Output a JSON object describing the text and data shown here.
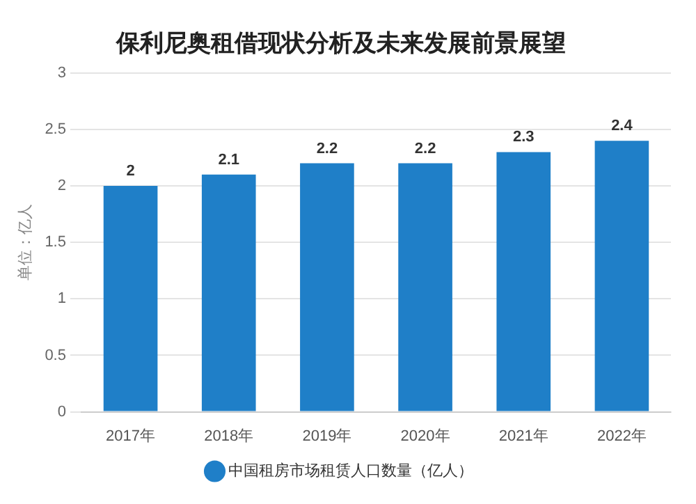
{
  "chart_data": {
    "type": "bar",
    "title": "保利尼奥租借现状分析及未来发展前景展望",
    "ylabel": "单位：亿人",
    "categories": [
      "2017年",
      "2018年",
      "2019年",
      "2020年",
      "2021年",
      "2022年"
    ],
    "series": [
      {
        "name": "中国租房市场租赁人口数量（亿人）",
        "color": "#1f7fc8",
        "values": [
          2,
          2.1,
          2.2,
          2.2,
          2.3,
          2.4
        ]
      }
    ],
    "ylim": [
      0,
      3
    ],
    "yticks": [
      0,
      0.5,
      1,
      1.5,
      2,
      2.5,
      3
    ],
    "grid": "y",
    "legend": "bottom",
    "data_labels": true
  }
}
